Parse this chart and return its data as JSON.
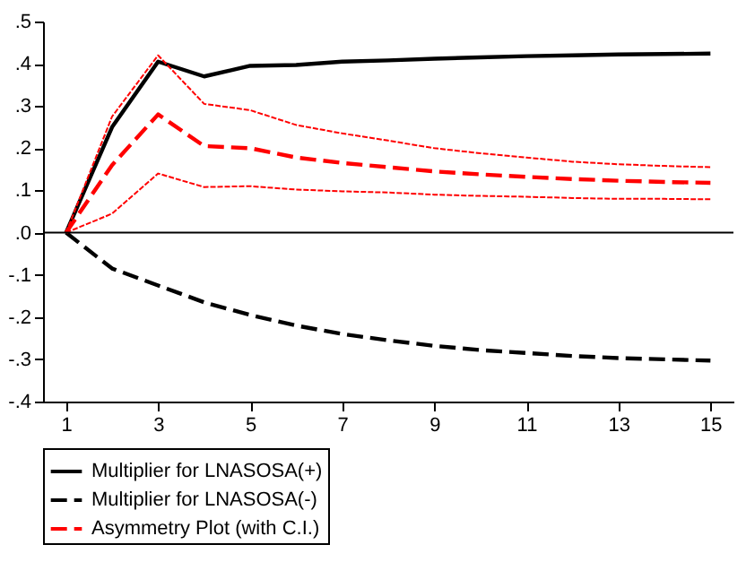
{
  "chart_data": {
    "type": "line",
    "x": [
      1,
      2,
      3,
      4,
      5,
      6,
      7,
      8,
      9,
      10,
      11,
      12,
      13,
      14,
      15
    ],
    "xlim": [
      0.5,
      15.5
    ],
    "xticks": [
      1,
      3,
      5,
      7,
      9,
      11,
      13,
      15
    ],
    "ylim": [
      -0.4,
      0.5
    ],
    "yticks": [
      {
        "value": -0.4,
        "label": "-.4"
      },
      {
        "value": -0.3,
        "label": "-.3"
      },
      {
        "value": -0.2,
        "label": "-.2"
      },
      {
        "value": -0.1,
        "label": "-.1"
      },
      {
        "value": 0,
        "label": ".0"
      },
      {
        "value": 0.1,
        "label": ".1"
      },
      {
        "value": 0.2,
        "label": ".2"
      },
      {
        "value": 0.3,
        "label": ".3"
      },
      {
        "value": 0.4,
        "label": ".4"
      },
      {
        "value": 0.5,
        "label": ".5"
      }
    ],
    "grid": false,
    "legend": "bottom",
    "marker": "none",
    "ref_lines": [
      {
        "axis": "y",
        "value": 0,
        "color": "#000000"
      }
    ],
    "series": [
      {
        "name": "Multiplier for LNASOSA(+)",
        "color": "#000000",
        "line_style": "solid",
        "values": [
          0,
          0.25,
          0.405,
          0.37,
          0.395,
          0.397,
          0.405,
          0.408,
          0.412,
          0.415,
          0.418,
          0.42,
          0.422,
          0.423,
          0.424
        ]
      },
      {
        "name": "Multiplier for LNASOSA(-)",
        "color": "#000000",
        "line_style": "dashed",
        "values": [
          0,
          -0.085,
          -0.125,
          -0.165,
          -0.195,
          -0.22,
          -0.24,
          -0.255,
          -0.268,
          -0.278,
          -0.285,
          -0.292,
          -0.297,
          -0.3,
          -0.303
        ]
      },
      {
        "name": "Asymmetry Plot (with C.I.)",
        "color": "#ff0000",
        "line_style": "dashed",
        "values": [
          0,
          0.16,
          0.28,
          0.205,
          0.2,
          0.178,
          0.165,
          0.155,
          0.145,
          0.138,
          0.132,
          0.127,
          0.123,
          0.12,
          0.118
        ]
      },
      {
        "color": "#ff0000",
        "line_style": "dotted",
        "values": [
          0,
          0.045,
          0.14,
          0.108,
          0.11,
          0.102,
          0.098,
          0.095,
          0.09,
          0.087,
          0.085,
          0.082,
          0.08,
          0.08,
          0.079
        ]
      },
      {
        "color": "#ff0000",
        "line_style": "dotted",
        "values": [
          0,
          0.275,
          0.42,
          0.305,
          0.29,
          0.255,
          0.235,
          0.218,
          0.2,
          0.188,
          0.178,
          0.168,
          0.162,
          0.158,
          0.155
        ]
      }
    ]
  }
}
